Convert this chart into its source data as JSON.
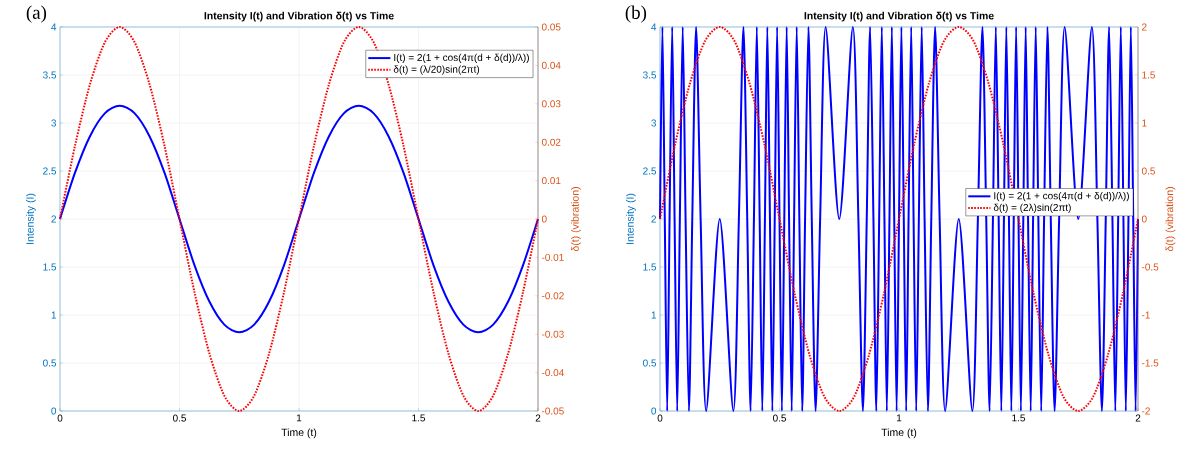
{
  "chart_data": [
    {
      "type": "line",
      "title": "Intensity I(t) and Vibration δ(t) vs Time",
      "xlabel": "Time (t)",
      "ylabel": "Intensity (I)",
      "y2label": "δ(t) (vibration)",
      "xlim": [
        0,
        2
      ],
      "xticks": [
        0,
        0.5,
        1,
        1.5,
        2
      ],
      "ylim": [
        0,
        4
      ],
      "yticks": [
        0,
        0.5,
        1,
        1.5,
        2,
        2.5,
        3,
        3.5,
        4
      ],
      "y2lim": [
        -0.05,
        0.05
      ],
      "y2ticks": [
        -0.05,
        -0.04,
        -0.03,
        -0.02,
        -0.01,
        0,
        0.01,
        0.02,
        0.03,
        0.04,
        0.05
      ],
      "grid": true,
      "legend": "top right",
      "annotations": [
        "(a)"
      ],
      "series": [
        {
          "name": "I(t) = 2(1 + cos(4π(d + δ(d))/λ))",
          "color": "#0000ff",
          "line_style": "solid",
          "x": [
            0,
            0.0625,
            0.125,
            0.1875,
            0.25,
            0.3125,
            0.375,
            0.4375,
            0.5,
            0.5625,
            0.625,
            0.6875,
            0.75,
            0.8125,
            0.875,
            0.9375,
            1,
            1.0625,
            1.125,
            1.1875,
            1.25,
            1.3125,
            1.375,
            1.4375,
            1.5,
            1.5625,
            1.625,
            1.6875,
            1.75,
            1.8125,
            1.875,
            1.9375,
            2
          ],
          "values": [
            2,
            2.48,
            2.86,
            3.1,
            3.18,
            3.1,
            2.86,
            2.48,
            2,
            1.52,
            1.14,
            0.9,
            0.82,
            0.9,
            1.14,
            1.52,
            2,
            2.48,
            2.86,
            3.1,
            3.18,
            3.1,
            2.86,
            2.48,
            2,
            1.52,
            1.14,
            0.9,
            0.82,
            0.9,
            1.14,
            1.52,
            2
          ]
        },
        {
          "name": "δ(t) = (λ/20)sin(2πt)",
          "color": "#ff0000",
          "line_style": "dotted",
          "axis": "y2",
          "x": [
            0,
            0.0625,
            0.125,
            0.1875,
            0.25,
            0.3125,
            0.375,
            0.4375,
            0.5,
            0.5625,
            0.625,
            0.6875,
            0.75,
            0.8125,
            0.875,
            0.9375,
            1,
            1.0625,
            1.125,
            1.1875,
            1.25,
            1.3125,
            1.375,
            1.4375,
            1.5,
            1.5625,
            1.625,
            1.6875,
            1.75,
            1.8125,
            1.875,
            1.9375,
            2
          ],
          "values": [
            0,
            0.019,
            0.035,
            0.046,
            0.05,
            0.046,
            0.035,
            0.019,
            0,
            -0.019,
            -0.035,
            -0.046,
            -0.05,
            -0.046,
            -0.035,
            -0.019,
            0,
            0.019,
            0.035,
            0.046,
            0.05,
            0.046,
            0.035,
            0.019,
            0,
            -0.019,
            -0.035,
            -0.046,
            -0.05,
            -0.046,
            -0.035,
            -0.019,
            0
          ]
        }
      ]
    },
    {
      "type": "line",
      "title": "Intensity I(t) and Vibration δ(t) vs Time",
      "xlabel": "Time (t)",
      "ylabel": "Intensity (I)",
      "y2label": "δ(t) (vibration)",
      "xlim": [
        0,
        2
      ],
      "xticks": [
        0,
        0.5,
        1,
        1.5,
        2
      ],
      "ylim": [
        0,
        4
      ],
      "yticks": [
        0,
        0.5,
        1,
        1.5,
        2,
        2.5,
        3,
        3.5,
        4
      ],
      "y2lim": [
        -2,
        2
      ],
      "y2ticks": [
        -2,
        -1.5,
        -1,
        -0.5,
        0,
        0.5,
        1,
        1.5,
        2
      ],
      "grid": true,
      "legend": "right",
      "annotations": [
        "(b)"
      ],
      "series": [
        {
          "name": "I(t) = 2(1 + cos(4π(d + δ(d))/λ))",
          "color": "#0000ff",
          "line_style": "solid",
          "x": [
            0,
            0.01,
            0.02,
            0.03,
            0.04,
            0.051,
            0.061,
            0.072,
            0.083,
            0.095,
            0.107,
            0.121,
            0.135,
            0.151,
            0.17,
            0.193,
            0.25,
            0.307,
            0.33,
            0.349,
            0.365,
            0.379,
            0.393,
            0.405,
            0.417,
            0.428,
            0.439,
            0.449,
            0.46,
            0.47,
            0.48,
            0.49,
            0.5,
            0.51,
            0.52,
            0.53,
            0.54,
            0.551,
            0.561,
            0.572,
            0.583,
            0.595,
            0.607,
            0.621,
            0.635,
            0.651,
            0.67,
            0.693,
            0.75,
            0.807,
            0.83,
            0.849,
            0.865,
            0.879,
            0.893,
            0.905,
            0.917,
            0.928,
            0.939,
            0.949,
            0.96,
            0.97,
            0.98,
            0.99,
            1,
            1.01,
            1.02,
            1.03,
            1.04,
            1.051,
            1.061,
            1.072,
            1.083,
            1.095,
            1.107,
            1.121,
            1.135,
            1.151,
            1.17,
            1.193,
            1.25,
            1.307,
            1.33,
            1.349,
            1.365,
            1.379,
            1.393,
            1.405,
            1.417,
            1.428,
            1.439,
            1.449,
            1.46,
            1.47,
            1.48,
            1.49,
            1.5,
            1.51,
            1.52,
            1.53,
            1.54,
            1.551,
            1.561,
            1.572,
            1.583,
            1.595,
            1.607,
            1.621,
            1.635,
            1.651,
            1.67,
            1.693,
            1.75,
            1.807,
            1.83,
            1.849,
            1.865,
            1.879,
            1.893,
            1.905,
            1.917,
            1.928,
            1.939,
            1.949,
            1.96,
            1.97,
            1.98,
            1.99,
            2
          ],
          "values": [
            2,
            4,
            2,
            0,
            2,
            4,
            2,
            0,
            2,
            4,
            2,
            0,
            2,
            4,
            2,
            0,
            2,
            0,
            2,
            4,
            2,
            0,
            2,
            4,
            2,
            0,
            2,
            4,
            2,
            0,
            2,
            4,
            2,
            0,
            2,
            4,
            2,
            0,
            2,
            4,
            2,
            0,
            2,
            4,
            2,
            0,
            2,
            4,
            2,
            4,
            2,
            0,
            2,
            4,
            2,
            0,
            2,
            4,
            2,
            0,
            2,
            4,
            2,
            0,
            2,
            4,
            2,
            0,
            2,
            4,
            2,
            0,
            2,
            4,
            2,
            0,
            2,
            4,
            2,
            0,
            2,
            0,
            2,
            4,
            2,
            0,
            2,
            4,
            2,
            0,
            2,
            4,
            2,
            0,
            2,
            4,
            2,
            0,
            2,
            4,
            2,
            0,
            2,
            4,
            2,
            0,
            2,
            4,
            2,
            0,
            2,
            4,
            2,
            4,
            2,
            0,
            2,
            4,
            2,
            0,
            2,
            4,
            2,
            0,
            2,
            4,
            2,
            0,
            2
          ]
        },
        {
          "name": "δ(t) = (2λ)sin(2πt)",
          "color": "#ff0000",
          "line_style": "dotted",
          "axis": "y2",
          "x": [
            0,
            0.0625,
            0.125,
            0.1875,
            0.25,
            0.3125,
            0.375,
            0.4375,
            0.5,
            0.5625,
            0.625,
            0.6875,
            0.75,
            0.8125,
            0.875,
            0.9375,
            1,
            1.0625,
            1.125,
            1.1875,
            1.25,
            1.3125,
            1.375,
            1.4375,
            1.5,
            1.5625,
            1.625,
            1.6875,
            1.75,
            1.8125,
            1.875,
            1.9375,
            2
          ],
          "values": [
            0,
            0.77,
            1.41,
            1.85,
            2,
            1.85,
            1.41,
            0.77,
            0,
            -0.77,
            -1.41,
            -1.85,
            -2,
            -1.85,
            -1.41,
            -0.77,
            0,
            0.77,
            1.41,
            1.85,
            2,
            1.85,
            1.41,
            0.77,
            0,
            -0.77,
            -1.41,
            -1.85,
            -2,
            -1.85,
            -1.41,
            -0.77,
            0
          ]
        }
      ]
    }
  ]
}
